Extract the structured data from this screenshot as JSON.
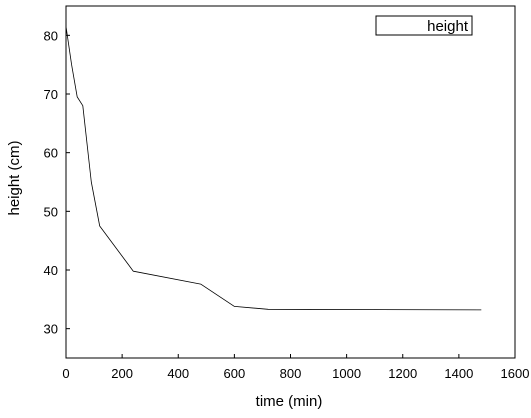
{
  "chart_data": {
    "type": "line",
    "xlabel": "time (min)",
    "ylabel": "height (cm)",
    "xlim": [
      0,
      1600
    ],
    "ylim": [
      25,
      85
    ],
    "xticks": [
      0,
      200,
      400,
      600,
      800,
      1000,
      1200,
      1400,
      1600
    ],
    "yticks": [
      30,
      40,
      50,
      60,
      70,
      80
    ],
    "grid": false,
    "legend_position": "top-right",
    "series": [
      {
        "name": "height",
        "color": "#000000",
        "x": [
          0,
          20,
          40,
          60,
          90,
          120,
          240,
          480,
          600,
          720,
          1480
        ],
        "y": [
          81.5,
          75,
          69.5,
          68,
          55,
          47.5,
          39.8,
          37.6,
          33.8,
          33.3,
          33.2
        ]
      }
    ]
  }
}
